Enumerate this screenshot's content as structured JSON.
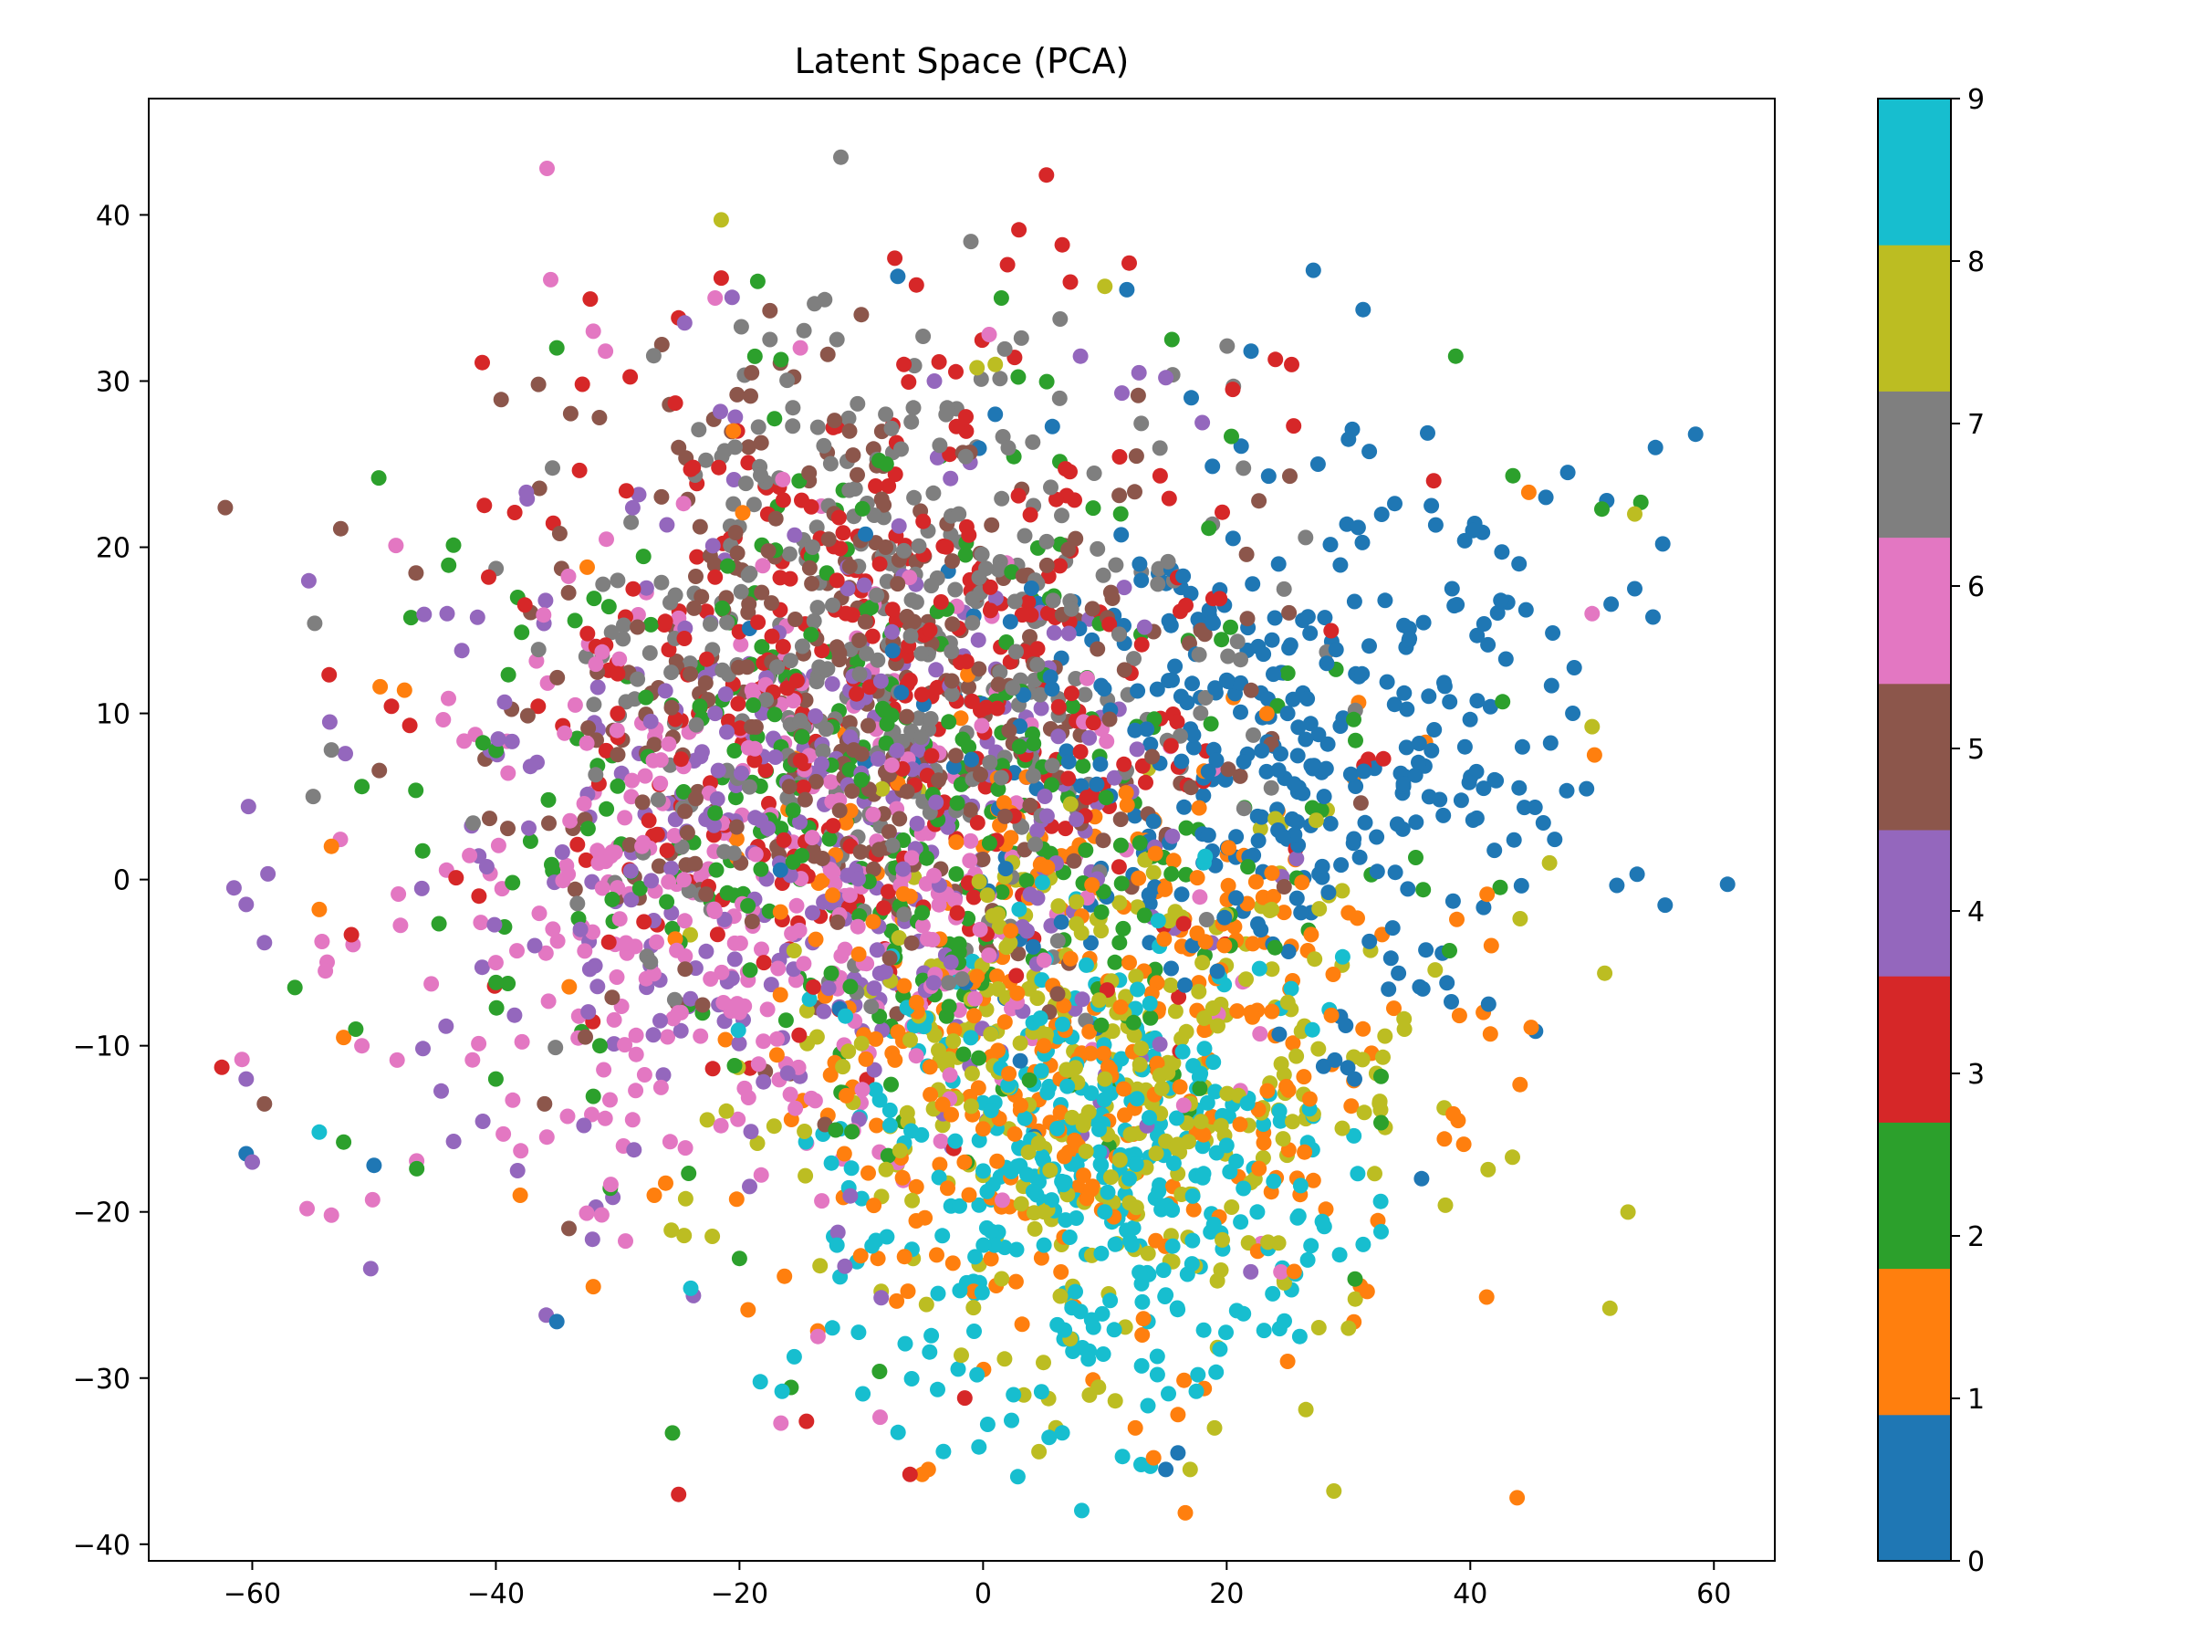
{
  "chart_data": {
    "type": "scatter",
    "title": "Latent Space (PCA)",
    "xlabel": "",
    "ylabel": "",
    "xlim": [
      -68.5,
      65
    ],
    "ylim": [
      -41,
      47
    ],
    "x_ticks": [
      -60,
      -40,
      -20,
      0,
      20,
      40,
      60
    ],
    "x_tick_labels": [
      "−60",
      "−40",
      "−20",
      "0",
      "20",
      "40",
      "60"
    ],
    "y_ticks": [
      -40,
      -30,
      -20,
      -10,
      0,
      10,
      20,
      30,
      40
    ],
    "y_tick_labels": [
      "−40",
      "−30",
      "−20",
      "−10",
      "0",
      "10",
      "20",
      "30",
      "40"
    ],
    "grid": false,
    "colormap": "tab10",
    "colorbar": {
      "range": [
        0,
        9
      ],
      "ticks": [
        0,
        1,
        2,
        3,
        4,
        5,
        6,
        7,
        8,
        9
      ],
      "tick_labels": [
        "0",
        "1",
        "2",
        "3",
        "4",
        "5",
        "6",
        "7",
        "8",
        "9"
      ],
      "colors": [
        "#1f77b4",
        "#ff7f0e",
        "#2ca02c",
        "#d62728",
        "#9467bd",
        "#8c564b",
        "#e377c2",
        "#7f7f7f",
        "#bcbd22",
        "#17becf"
      ]
    },
    "class_centers": [
      {
        "label": 0,
        "x": 22,
        "y": 8
      },
      {
        "label": 1,
        "x": 8,
        "y": -10
      },
      {
        "label": 2,
        "x": -8,
        "y": 4
      },
      {
        "label": 3,
        "x": -10,
        "y": 10
      },
      {
        "label": 4,
        "x": -14,
        "y": 2
      },
      {
        "label": 5,
        "x": -10,
        "y": 12
      },
      {
        "label": 6,
        "x": -18,
        "y": -2
      },
      {
        "label": 7,
        "x": -6,
        "y": 14
      },
      {
        "label": 8,
        "x": 10,
        "y": -12
      },
      {
        "label": 9,
        "x": 10,
        "y": -18
      }
    ],
    "points": [
      [
        58.5,
        26.8,
        0
      ],
      [
        55.2,
        26.0,
        0
      ],
      [
        55.8,
        20.2,
        0
      ],
      [
        55.0,
        15.8,
        0
      ],
      [
        53.5,
        17.5,
        0
      ],
      [
        51.2,
        22.8,
        0
      ],
      [
        48.0,
        24.5,
        0
      ],
      [
        46.2,
        23.0,
        0
      ],
      [
        44.0,
        19.0,
        0
      ],
      [
        42.5,
        16.8,
        0
      ],
      [
        40.2,
        21.0,
        0
      ],
      [
        38.5,
        17.5,
        0
      ],
      [
        36.8,
        22.5,
        0
      ],
      [
        35.0,
        14.5,
        0
      ],
      [
        33.0,
        16.8,
        0
      ],
      [
        31.2,
        34.3,
        0
      ],
      [
        30.0,
        26.5,
        0
      ],
      [
        27.5,
        25.0,
        0
      ],
      [
        22.0,
        31.8,
        0
      ],
      [
        -7.0,
        36.3,
        0
      ],
      [
        11.8,
        35.5,
        0
      ],
      [
        1.0,
        28.0,
        0
      ],
      [
        -35.0,
        -26.6,
        0
      ],
      [
        -50.0,
        -17.2,
        0
      ],
      [
        -60.5,
        -16.5,
        0
      ],
      [
        15.0,
        -35.5,
        0
      ],
      [
        16.0,
        -34.5,
        0
      ],
      [
        36.0,
        -18.0,
        0
      ],
      [
        41.5,
        -7.5,
        0
      ],
      [
        30.5,
        -12.0,
        0
      ],
      [
        28.0,
        5.0,
        0
      ],
      [
        25.0,
        10.0,
        0
      ],
      [
        20.0,
        12.0,
        0
      ],
      [
        18.5,
        6.5,
        0
      ],
      [
        14.0,
        3.5,
        0
      ],
      [
        44.8,
        23.3,
        1
      ],
      [
        50.2,
        7.5,
        1
      ],
      [
        45.0,
        -8.9,
        1
      ],
      [
        39.0,
        -14.5,
        1
      ],
      [
        -49.5,
        11.6,
        1
      ],
      [
        -47.5,
        11.4,
        1
      ],
      [
        -53.5,
        2.0,
        1
      ],
      [
        -54.5,
        -1.8,
        1
      ],
      [
        -52.5,
        -9.5,
        1
      ],
      [
        -38.0,
        -19.0,
        1
      ],
      [
        -32.0,
        -24.5,
        1
      ],
      [
        -27.0,
        -19.0,
        1
      ],
      [
        -5.0,
        -35.8,
        1
      ],
      [
        -4.5,
        -35.5,
        1
      ],
      [
        12.5,
        -33.0,
        1
      ],
      [
        14.0,
        -34.8,
        1
      ],
      [
        16.0,
        -32.2,
        1
      ],
      [
        25.0,
        -29.0,
        1
      ],
      [
        -20.5,
        27.0,
        1
      ],
      [
        -32.5,
        18.8,
        1
      ],
      [
        5.0,
        -10.0,
        1
      ],
      [
        12.0,
        -5.0,
        1
      ],
      [
        22.0,
        -8.0,
        1
      ],
      [
        30.0,
        -2.0,
        1
      ],
      [
        0.0,
        -15.0,
        1
      ],
      [
        -8.5,
        -29.6,
        2
      ],
      [
        -56.5,
        -6.5,
        2
      ],
      [
        -52.5,
        -15.8,
        2
      ],
      [
        -51.5,
        -9.0,
        2
      ],
      [
        -51.0,
        5.6,
        2
      ],
      [
        -46.5,
        -17.4,
        2
      ],
      [
        -35.0,
        32.0,
        2
      ],
      [
        -18.5,
        36.0,
        2
      ],
      [
        1.5,
        35.0,
        2
      ],
      [
        15.5,
        32.5,
        2
      ],
      [
        38.8,
        31.5,
        2
      ],
      [
        43.5,
        24.3,
        2
      ],
      [
        50.8,
        22.3,
        2
      ],
      [
        54.0,
        22.7,
        2
      ],
      [
        -20.0,
        -22.8,
        2
      ],
      [
        -10.0,
        6.0,
        2
      ],
      [
        -5.0,
        -2.0,
        2
      ],
      [
        3.0,
        8.0,
        2
      ],
      [
        -22.0,
        4.0,
        2
      ],
      [
        -40.0,
        -12.0,
        2
      ],
      [
        -62.5,
        -11.3,
        3
      ],
      [
        -25.0,
        -37.0,
        3
      ],
      [
        -14.5,
        -32.6,
        3
      ],
      [
        -6.0,
        -35.8,
        3
      ],
      [
        -1.5,
        -31.2,
        3
      ],
      [
        -25.0,
        33.8,
        3
      ],
      [
        -21.5,
        36.2,
        3
      ],
      [
        -6.5,
        31.0,
        3
      ],
      [
        2.0,
        37.0,
        3
      ],
      [
        6.5,
        38.2,
        3
      ],
      [
        12.0,
        37.1,
        3
      ],
      [
        20.5,
        29.5,
        3
      ],
      [
        24.0,
        31.3,
        3
      ],
      [
        25.5,
        27.3,
        3
      ],
      [
        37.0,
        24.0,
        3
      ],
      [
        5.2,
        42.4,
        3
      ],
      [
        -30.0,
        10.0,
        3
      ],
      [
        -12.0,
        18.0,
        3
      ],
      [
        -6.0,
        12.0,
        3
      ],
      [
        -18.0,
        -5.0,
        3
      ],
      [
        -61.5,
        -0.5,
        4
      ],
      [
        -60.5,
        -1.5,
        4
      ],
      [
        -59.0,
        -3.8,
        4
      ],
      [
        -60.5,
        -12.0,
        4
      ],
      [
        -60.0,
        -17.0,
        4
      ],
      [
        -37.5,
        23.3,
        4
      ],
      [
        -24.5,
        33.5,
        4
      ],
      [
        -4.0,
        30.0,
        4
      ],
      [
        8.0,
        31.5,
        4
      ],
      [
        12.8,
        30.5,
        4
      ],
      [
        15.0,
        30.2,
        4
      ],
      [
        18.0,
        27.5,
        4
      ],
      [
        -44.0,
        16.0,
        4
      ],
      [
        -22.0,
        10.0,
        4
      ],
      [
        -14.0,
        -2.0,
        4
      ],
      [
        -36.5,
        29.8,
        5
      ],
      [
        -10.0,
        34.0,
        5
      ],
      [
        -19.0,
        30.5,
        5
      ],
      [
        -25.0,
        26.0,
        5
      ],
      [
        -36.0,
        -13.5,
        5
      ],
      [
        -59.0,
        -13.5,
        5
      ],
      [
        -34.0,
        -21.0,
        5
      ],
      [
        -31.5,
        27.8,
        5
      ],
      [
        -12.0,
        14.0,
        5
      ],
      [
        -8.0,
        20.0,
        5
      ],
      [
        -35.8,
        42.8,
        6
      ],
      [
        -35.5,
        36.1,
        6
      ],
      [
        -32.0,
        33.0,
        6
      ],
      [
        -31.0,
        31.8,
        6
      ],
      [
        -55.5,
        -19.8,
        6
      ],
      [
        -53.5,
        -20.2,
        6
      ],
      [
        -54.0,
        -5.5,
        6
      ],
      [
        -51.0,
        -10.0,
        6
      ],
      [
        0.5,
        32.8,
        6
      ],
      [
        -15.0,
        32.0,
        6
      ],
      [
        -22.0,
        35.0,
        6
      ],
      [
        50.0,
        16.0,
        6
      ],
      [
        -40.0,
        -5.0,
        6
      ],
      [
        -20.0,
        -8.0,
        6
      ],
      [
        -28.0,
        2.0,
        6
      ],
      [
        -1.0,
        38.4,
        7
      ],
      [
        -13.0,
        34.9,
        7
      ],
      [
        -12.0,
        32.5,
        7
      ],
      [
        -17.5,
        32.5,
        7
      ],
      [
        -53.5,
        7.8,
        7
      ],
      [
        -55.0,
        5.0,
        7
      ],
      [
        -8.0,
        28.0,
        7
      ],
      [
        -2.0,
        22.0,
        7
      ],
      [
        -14.0,
        20.0,
        7
      ],
      [
        -30.0,
        18.0,
        7
      ],
      [
        -21.5,
        39.7,
        8
      ],
      [
        1.0,
        31.0,
        8
      ],
      [
        -0.5,
        30.8,
        8
      ],
      [
        10.0,
        35.7,
        8
      ],
      [
        26.5,
        -31.9,
        8
      ],
      [
        28.8,
        -36.8,
        8
      ],
      [
        17.0,
        -35.5,
        8
      ],
      [
        19.0,
        -33.0,
        8
      ],
      [
        30.0,
        -27.0,
        8
      ],
      [
        46.5,
        1.0,
        8
      ],
      [
        50.0,
        9.2,
        8
      ],
      [
        53.5,
        22.0,
        8
      ],
      [
        10.0,
        -12.0,
        8
      ],
      [
        18.0,
        -5.0,
        8
      ],
      [
        5.0,
        -20.0,
        8
      ],
      [
        -54.5,
        -15.2,
        9
      ],
      [
        -16.5,
        -30.8,
        9
      ],
      [
        -0.5,
        -29.8,
        9
      ],
      [
        2.5,
        -31.0,
        9
      ],
      [
        6.5,
        -33.3,
        9
      ],
      [
        17.5,
        -30.8,
        9
      ],
      [
        26.0,
        -27.5,
        9
      ],
      [
        15.0,
        -25.0,
        9
      ],
      [
        10.0,
        -20.0,
        9
      ],
      [
        8.0,
        -26.0,
        9
      ],
      [
        12.0,
        -18.0,
        9
      ],
      [
        5.0,
        -22.0,
        9
      ],
      [
        20.0,
        -16.0,
        9
      ],
      [
        -24.0,
        -24.6,
        9
      ],
      [
        -12.0,
        -22.0,
        9
      ]
    ]
  }
}
